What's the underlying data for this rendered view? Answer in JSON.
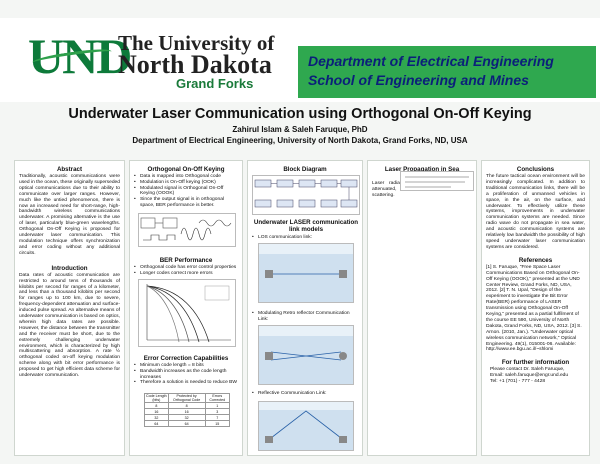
{
  "header": {
    "logo_und": "UND",
    "logo_line1": "The University of",
    "logo_line2": "North Dakota",
    "logo_line3": "Grand Forks",
    "dept_line1": "Department of Electrical Engineering",
    "dept_line2": "School of Engineering and Mines"
  },
  "title": "Underwater Laser Communication using Orthogonal On-Off Keying",
  "authors": "Zahirul Islam & Saleh Faruque, PhD",
  "affiliation": "Department of Electrical Engineering, University of North Dakota, Grand Forks, ND, USA",
  "abstract": {
    "heading": "Abstract",
    "text": "Traditionally, acoustic communications were used in the ocean, these originally superseded optical communications due to their ability to communicate over larger ranges. However, much like the untied phenomenon, there is now an increased need for short-range, high-bandwidth wireless communications underwater. A promising alternative is the use of laser, particularly blue-green wavelengths. Orthogonal On-Off Keying is proposed for underwater laser communication. This modulation technique offers synchronization and error coding without any additional circuits."
  },
  "introduction": {
    "heading": "Introduction",
    "text": "Data rates of acoustic communication are restricted to around tens of thousands of kilobits per second for ranges of a kilometer, and less than a thousand kilobits per second for ranges up to 100 km, due to severe, frequency-dependent attenuation and surface-induced pulse spread. An alternative means of underwater communication is based on optics, wherein high data rates are possible. However, the distance between the transmitter and the receiver must be short, due to the extremely challenging underwater environment, which is characterized by high multiscattering and absorption. A rate ½ orthogonal coded on-off keying modulation scheme along with bit error performance is proposed to get high efficient data scheme for underwater communication."
  },
  "ook": {
    "heading": "Orthogonal On-Off Keying",
    "bullets": [
      "Data is mapped into Orthogonal code",
      "Modulation is On-Off keying (OOK)",
      "Modulated signal is Orthogonal On-Off Keying (OOOK)",
      "Since the output signal is in orthogonal space, BER performance is better."
    ]
  },
  "ber": {
    "heading": "BER Performance",
    "bullets": [
      "Orthogonal code has error control properties",
      "Longer codes correct more errors"
    ]
  },
  "ecc": {
    "heading": "Error Correction Capabilities",
    "bullets": [
      "Minimum code length = 8 bits",
      "Bandwidth increases as the code length increases",
      "Therefore a solution is needed to reduce BW"
    ],
    "table": {
      "headers": [
        "Code Length (bits)",
        "Protected by Orthogonal Code",
        "Errors Corrected"
      ],
      "rows": [
        [
          "8",
          "8",
          "1"
        ],
        [
          "16",
          "16",
          "3"
        ],
        [
          "32",
          "32",
          "7"
        ],
        [
          "64",
          "64",
          "15"
        ]
      ]
    }
  },
  "block": {
    "heading": "Block Diagram"
  },
  "links": {
    "heading": "Underwater LASER communication link models",
    "items": [
      "LOS communication link:",
      "Modulating Retro reflector Communication Link:",
      "Reflective Communication Link:"
    ]
  },
  "propagation": {
    "heading": "Laser Propagation in Sea Environment",
    "text": "Laser radiation propagating in water is attenuated, mainly due to absorption and scattering."
  },
  "conclusions": {
    "heading": "Conclusions",
    "text": "The future tactical ocean environment will be increasingly complicated. In addition to traditional communication links, there will be a proliferation of unmanned vehicles in space, in the air, on the surface, and underwater. To effectively utilize these systems, improvements in underwater communication systems are needed. Since radio wave do not propagate in sea water, and acoustic communication systems are relatively low bandwidth the possibility of high speed underwater laser communication systems are considered."
  },
  "references": {
    "heading": "References",
    "text": "[1] S. Faruque, \"Free Space Laser Communications Based on Orthogonal On-Off Keying (OOOK),\" presented at the UND Center Review, Grand Forks, ND, USA, 2012. [2] T. N. Upal, \"Design of the experiment to investigate the Bit Error Rate(BER) performance of LASER transmission using Orthogonal On-Off Keying,\" presented as a partial fulfilment of the course EE 590, University of North Dakota, Grand Forks, ND, USA, 2012. [3] S. Arnon. (2010, Jan.). \"Underwater optical wireless communication network,\" Optical Engineering. 49(1), 015001-06. Available: http://www.ee.bgu.ac.il/~shlomi"
  },
  "further": {
    "heading": "For further information",
    "line1": "Please contact Dr. Saleh Faruque,",
    "line2": "Email: saleh.faruque@engr.und.edu",
    "line3": "Tel: +1 (701) - 777 - 4428"
  },
  "colors": {
    "green": "#2fa84f",
    "und_green": "#0d7a3a",
    "dept_blue": "#0b1f7a"
  }
}
